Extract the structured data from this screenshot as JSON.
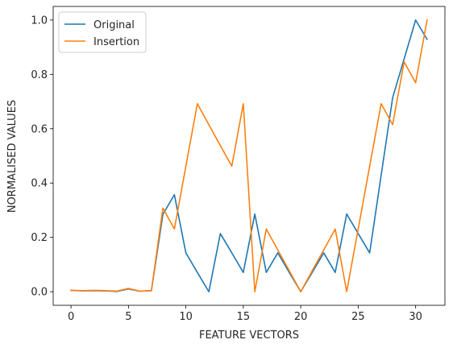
{
  "chart_data": {
    "type": "line",
    "xlabel": "FEATURE VECTORS",
    "ylabel": "NORMALISED VALUES",
    "xlim": [
      -1.55,
      32.55
    ],
    "ylim": [
      -0.05,
      1.05
    ],
    "xticks": [
      0,
      5,
      10,
      15,
      20,
      25,
      30
    ],
    "yticks": [
      0.0,
      0.2,
      0.4,
      0.6,
      0.8,
      1.0
    ],
    "xtick_labels": [
      "0",
      "5",
      "10",
      "15",
      "20",
      "25",
      "30"
    ],
    "ytick_labels": [
      "0.0",
      "0.2",
      "0.4",
      "0.6",
      "0.8",
      "1.0"
    ],
    "grid": false,
    "legend_position": "top-left",
    "x": [
      0,
      1,
      2,
      3,
      4,
      5,
      6,
      7,
      8,
      9,
      10,
      11,
      12,
      13,
      14,
      15,
      16,
      17,
      18,
      19,
      20,
      21,
      22,
      23,
      24,
      25,
      26,
      27,
      28,
      29,
      30,
      31
    ],
    "series": [
      {
        "name": "Original",
        "color": "#1f77b4",
        "values": [
          0.005,
          0.003,
          0.004,
          0.003,
          0.001,
          0.01,
          0.002,
          0.004,
          0.285,
          0.357,
          0.143,
          0.071,
          0.0,
          0.214,
          0.143,
          0.071,
          0.286,
          0.071,
          0.143,
          0.071,
          0.0,
          0.071,
          0.143,
          0.071,
          0.286,
          0.214,
          0.143,
          0.429,
          0.714,
          0.857,
          1.0,
          0.929
        ]
      },
      {
        "name": "Insertion",
        "color": "#ff7f0e",
        "values": [
          0.005,
          0.004,
          0.005,
          0.004,
          0.002,
          0.012,
          0.002,
          0.004,
          0.308,
          0.231,
          0.462,
          0.692,
          0.615,
          0.538,
          0.462,
          0.692,
          0.0,
          0.231,
          0.154,
          0.077,
          0.0,
          0.077,
          0.154,
          0.231,
          0.0,
          0.231,
          0.462,
          0.692,
          0.615,
          0.846,
          0.769,
          1.0
        ]
      }
    ]
  }
}
